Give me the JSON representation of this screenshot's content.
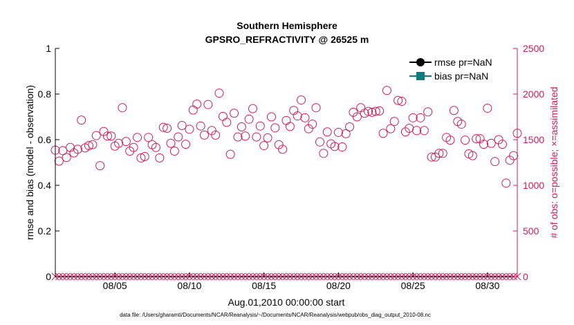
{
  "chart_data": {
    "type": "scatter",
    "title": [
      "Southern Hemisphere",
      "GPSRO_REFRACTIVITY @ 26525 m"
    ],
    "xlabel": "Aug.01,2010 00:00:00 start",
    "ylabel_left": "rmse and bias (model - observation)",
    "ylabel_right": "# of obs: o=possible; ×=assimilated",
    "x_tick_labels": [
      "08/05",
      "08/10",
      "08/15",
      "08/20",
      "08/25",
      "08/30"
    ],
    "x_tick_days": [
      5,
      10,
      15,
      20,
      25,
      30
    ],
    "xlim_days": [
      1,
      32
    ],
    "left_ylim": [
      0,
      1
    ],
    "left_ticks": [
      "0",
      "0.2",
      "0.4",
      "0.6",
      "0.8",
      "1"
    ],
    "right_ylim": [
      0,
      2500
    ],
    "right_ticks": [
      "0",
      "500",
      "1000",
      "1500",
      "2000",
      "2500"
    ],
    "legend": [
      "rmse pr=NaN",
      "bias pr=NaN"
    ],
    "series": [
      {
        "name": "possible obs (o)",
        "axis": "right",
        "marker": "circle",
        "color": "#d6185a",
        "x_start_day": 1.0,
        "x_step_day": 0.25,
        "values": [
          1385,
          1265,
          1380,
          1305,
          1415,
          1355,
          1395,
          1715,
          1410,
          1435,
          1445,
          1545,
          1215,
          1590,
          1540,
          1540,
          1430,
          1460,
          1850,
          1480,
          1375,
          1415,
          1525,
          1300,
          1315,
          1525,
          1445,
          1415,
          1300,
          1635,
          1625,
          1460,
          1375,
          1530,
          1655,
          1450,
          1615,
          1825,
          1890,
          1650,
          1550,
          1885,
          1600,
          1550,
          2010,
          1755,
          1690,
          1340,
          1790,
          1530,
          1640,
          1540,
          1725,
          1840,
          1530,
          1650,
          1435,
          1520,
          1750,
          1630,
          1445,
          1395,
          1710,
          1645,
          1820,
          1760,
          1935,
          1740,
          1620,
          1670,
          1850,
          1475,
          1350,
          1585,
          1455,
          1425,
          1580,
          1420,
          1565,
          1640,
          1800,
          1750,
          1850,
          1790,
          1810,
          1800,
          1810,
          1815,
          1570,
          2040,
          1620,
          1700,
          1930,
          1920,
          1585,
          1625,
          1740,
          1600,
          1740,
          1600,
          1805,
          1310,
          1310,
          1350,
          1350,
          1525,
          1495,
          1820,
          1700,
          1670,
          1495,
          1345,
          1325,
          1510,
          1510,
          1450,
          1845,
          1460,
          1260,
          1500,
          1450,
          1025,
          1275,
          1325,
          1570
        ]
      },
      {
        "name": "assimilated obs (×)",
        "axis": "right",
        "marker": "x",
        "color": "#d6185a",
        "x_start_day": 1.0,
        "x_step_day": 0.25,
        "count": 125,
        "value": 0
      }
    ]
  },
  "colors": {
    "right_axis": "#d6185a",
    "rmse": "#000000",
    "bias": "#117a7a"
  },
  "footer": "data file: /Users/gharamti/Documents/NCAR/Reanalysis/~/Documents/NCAR/Reanalysis/webpub/obs_diag_output_2010-08.nc"
}
